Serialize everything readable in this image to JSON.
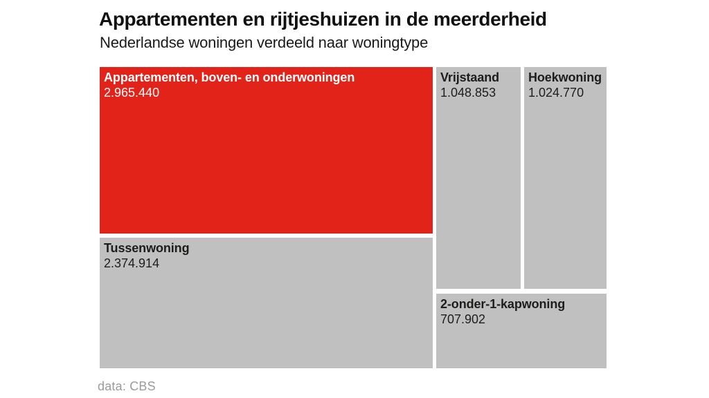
{
  "header": {
    "title": "Appartementen en rijtjeshuizen in de meerderheid",
    "subtitle": "Nederlandse woningen verdeeld naar woningtype"
  },
  "footer": {
    "source_label": "data: CBS"
  },
  "colors": {
    "highlight_red": "#e2231a",
    "tile_gray": "#c0c0c0",
    "text_dark": "#1d1d1b",
    "text_on_red": "#ffffff",
    "source_gray": "#9b9b9b",
    "background": "#ffffff"
  },
  "chart_data": {
    "type": "treemap",
    "title": "Appartementen en rijtjeshuizen in de meerderheid",
    "subtitle": "Nederlandse woningen verdeeld naar woningtype",
    "source": "data: CBS",
    "legend_position": "none",
    "items": [
      {
        "label": "Appartementen, boven- en onderwoningen",
        "value": 2965440,
        "value_label": "2.965.440",
        "highlighted": true
      },
      {
        "label": "Tussenwoning",
        "value": 2374914,
        "value_label": "2.374.914",
        "highlighted": false
      },
      {
        "label": "Vrijstaand",
        "value": 1048853,
        "value_label": "1.048.853",
        "highlighted": false
      },
      {
        "label": "Hoekwoning",
        "value": 1024770,
        "value_label": "1.024.770",
        "highlighted": false
      },
      {
        "label": "2-onder-1-kapwoning",
        "value": 707902,
        "value_label": "707.902",
        "highlighted": false
      }
    ]
  }
}
